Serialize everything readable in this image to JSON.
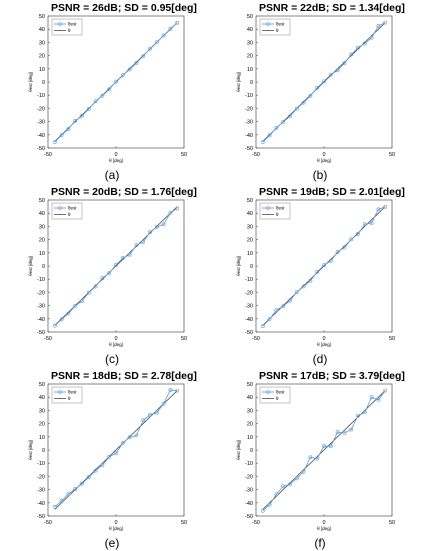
{
  "figure": {
    "legend_labels": {
      "est": "θest",
      "true": "θ"
    },
    "xlabel": "θ [deg]",
    "ylabel": "θest [deg]",
    "colors": {
      "est": "#5b9bd5",
      "true": "#333333",
      "axis": "#555555",
      "text": "#000000"
    }
  },
  "chart_data": [
    {
      "type": "line",
      "title": "PSNR = 26dB; SD = 0.95[deg]",
      "caption": "(a)",
      "xlabel": "θ [deg]",
      "ylabel": "θest [deg]",
      "xlim": [
        -50,
        50
      ],
      "ylim": [
        -50,
        50
      ],
      "xticks": [
        -50,
        0,
        50
      ],
      "yticks": [
        -50,
        -40,
        -30,
        -20,
        -10,
        0,
        10,
        20,
        30,
        40,
        50
      ],
      "grid": false,
      "legend_position": "top-left",
      "x": [
        -45,
        -40,
        -35,
        -30,
        -25,
        -20,
        -15,
        -10,
        -5,
        0,
        5,
        10,
        15,
        20,
        25,
        30,
        35,
        40,
        45
      ],
      "series": [
        {
          "name": "θest",
          "values": [
            -45.5,
            -40.3,
            -35.6,
            -29.4,
            -25.7,
            -20.4,
            -14.6,
            -10.4,
            -5.6,
            0.3,
            5.2,
            9.5,
            14.4,
            19.6,
            25.3,
            30.1,
            35.2,
            40.3,
            44.8
          ]
        },
        {
          "name": "θ",
          "values": [
            -45,
            -40,
            -35,
            -30,
            -25,
            -20,
            -15,
            -10,
            -5,
            0,
            5,
            10,
            15,
            20,
            25,
            30,
            35,
            40,
            45
          ]
        }
      ]
    },
    {
      "type": "line",
      "title": "PSNR = 22dB; SD = 1.34[deg]",
      "caption": "(b)",
      "xlabel": "θ [deg]",
      "ylabel": "θest [deg]",
      "xlim": [
        -50,
        50
      ],
      "ylim": [
        -50,
        50
      ],
      "xticks": [
        -50,
        0,
        50
      ],
      "yticks": [
        -50,
        -40,
        -30,
        -20,
        -10,
        0,
        10,
        20,
        30,
        40,
        50
      ],
      "grid": false,
      "legend_position": "top-left",
      "x": [
        -45,
        -40,
        -35,
        -30,
        -25,
        -20,
        -15,
        -10,
        -5,
        0,
        5,
        10,
        15,
        20,
        25,
        30,
        35,
        40,
        45
      ],
      "series": [
        {
          "name": "θest",
          "values": [
            -45.5,
            -40.5,
            -34.8,
            -30.3,
            -26.0,
            -20.2,
            -15.6,
            -10.5,
            -4.4,
            0.5,
            5.6,
            8.8,
            14.2,
            20.8,
            26.0,
            29.2,
            33.5,
            42.4,
            45.0
          ]
        },
        {
          "name": "θ",
          "values": [
            -45,
            -40,
            -35,
            -30,
            -25,
            -20,
            -15,
            -10,
            -5,
            0,
            5,
            10,
            15,
            20,
            25,
            30,
            35,
            40,
            45
          ]
        }
      ]
    },
    {
      "type": "line",
      "title": "PSNR = 20dB; SD = 1.76[deg]",
      "caption": "(c)",
      "xlabel": "θ [deg]",
      "ylabel": "θest [deg]",
      "xlim": [
        -50,
        50
      ],
      "ylim": [
        -50,
        50
      ],
      "xticks": [
        -50,
        0,
        50
      ],
      "yticks": [
        -50,
        -40,
        -30,
        -20,
        -10,
        0,
        10,
        20,
        30,
        40,
        50
      ],
      "grid": false,
      "legend_position": "top-left",
      "x": [
        -45,
        -40,
        -35,
        -30,
        -25,
        -20,
        -15,
        -10,
        -5,
        0,
        5,
        10,
        15,
        20,
        25,
        30,
        35,
        40,
        45
      ],
      "series": [
        {
          "name": "θest",
          "values": [
            -45.2,
            -40.5,
            -36.0,
            -30.2,
            -26.6,
            -20.2,
            -15.5,
            -9.2,
            -5.4,
            0.8,
            6.0,
            8.5,
            15.8,
            18.2,
            25.6,
            29.5,
            31.5,
            40.3,
            43.6
          ]
        },
        {
          "name": "θ",
          "values": [
            -45,
            -40,
            -35,
            -30,
            -25,
            -20,
            -15,
            -10,
            -5,
            0,
            5,
            10,
            15,
            20,
            25,
            30,
            35,
            40,
            45
          ]
        }
      ]
    },
    {
      "type": "line",
      "title": "PSNR = 19dB; SD = 2.01[deg]",
      "caption": "(d)",
      "xlabel": "θ [deg]",
      "ylabel": "θest [deg]",
      "xlim": [
        -50,
        50
      ],
      "ylim": [
        -50,
        50
      ],
      "xticks": [
        -50,
        0,
        50
      ],
      "yticks": [
        -50,
        -40,
        -30,
        -20,
        -10,
        0,
        10,
        20,
        30,
        40,
        50
      ],
      "grid": false,
      "legend_position": "top-left",
      "x": [
        -45,
        -40,
        -35,
        -30,
        -25,
        -20,
        -15,
        -10,
        -5,
        0,
        5,
        10,
        15,
        20,
        25,
        30,
        35,
        40,
        45
      ],
      "series": [
        {
          "name": "θest",
          "values": [
            -45.6,
            -40.2,
            -33.5,
            -30.5,
            -26.2,
            -19.8,
            -15.5,
            -11.2,
            -4.5,
            0.6,
            3.8,
            10.7,
            14.0,
            20.2,
            24.2,
            31.6,
            32.5,
            43.0,
            44.8
          ]
        },
        {
          "name": "θ",
          "values": [
            -45,
            -40,
            -35,
            -30,
            -25,
            -20,
            -15,
            -10,
            -5,
            0,
            5,
            10,
            15,
            20,
            25,
            30,
            35,
            40,
            45
          ]
        }
      ]
    },
    {
      "type": "line",
      "title": "PSNR = 18dB; SD = 2.78[deg]",
      "caption": "(e)",
      "xlabel": "θ [deg]",
      "ylabel": "θest [deg]",
      "xlim": [
        -50,
        50
      ],
      "ylim": [
        -50,
        50
      ],
      "xticks": [
        -50,
        0,
        50
      ],
      "yticks": [
        -50,
        -40,
        -30,
        -20,
        -10,
        0,
        10,
        20,
        30,
        40,
        50
      ],
      "grid": false,
      "legend_position": "top-left",
      "x": [
        -45,
        -40,
        -35,
        -30,
        -25,
        -20,
        -15,
        -10,
        -5,
        0,
        5,
        10,
        15,
        20,
        25,
        30,
        35,
        40,
        45
      ],
      "series": [
        {
          "name": "θest",
          "values": [
            -43.0,
            -38.6,
            -33.4,
            -29.5,
            -25.6,
            -20.6,
            -15.6,
            -11.5,
            -5.2,
            -2.5,
            5.4,
            9.6,
            11.0,
            22.5,
            26.6,
            28.2,
            35.0,
            45.5,
            45.0
          ]
        },
        {
          "name": "θ",
          "values": [
            -45,
            -40,
            -35,
            -30,
            -25,
            -20,
            -15,
            -10,
            -5,
            0,
            5,
            10,
            15,
            20,
            25,
            30,
            35,
            40,
            45
          ]
        }
      ]
    },
    {
      "type": "line",
      "title": "PSNR = 17dB; SD = 3.79[deg]",
      "caption": "(f)",
      "xlabel": "θ [deg]",
      "ylabel": "θest [deg]",
      "xlim": [
        -50,
        50
      ],
      "ylim": [
        -50,
        50
      ],
      "xticks": [
        -50,
        0,
        50
      ],
      "yticks": [
        -50,
        -40,
        -30,
        -20,
        -10,
        0,
        10,
        20,
        30,
        40,
        50
      ],
      "grid": false,
      "legend_position": "top-left",
      "x": [
        -45,
        -40,
        -35,
        -30,
        -25,
        -20,
        -15,
        -10,
        -5,
        0,
        5,
        10,
        15,
        20,
        25,
        30,
        35,
        40,
        45
      ],
      "series": [
        {
          "name": "θest",
          "values": [
            -46.0,
            -41.5,
            -33.5,
            -27.5,
            -26.0,
            -21.5,
            -16.5,
            -5.5,
            -6.5,
            3.0,
            2.8,
            13.6,
            13.0,
            15.5,
            26.0,
            28.5,
            40.0,
            38.0,
            45.0
          ]
        },
        {
          "name": "θ",
          "values": [
            -45,
            -40,
            -35,
            -30,
            -25,
            -20,
            -15,
            -10,
            -5,
            0,
            5,
            10,
            15,
            20,
            25,
            30,
            35,
            40,
            45
          ]
        }
      ]
    }
  ]
}
